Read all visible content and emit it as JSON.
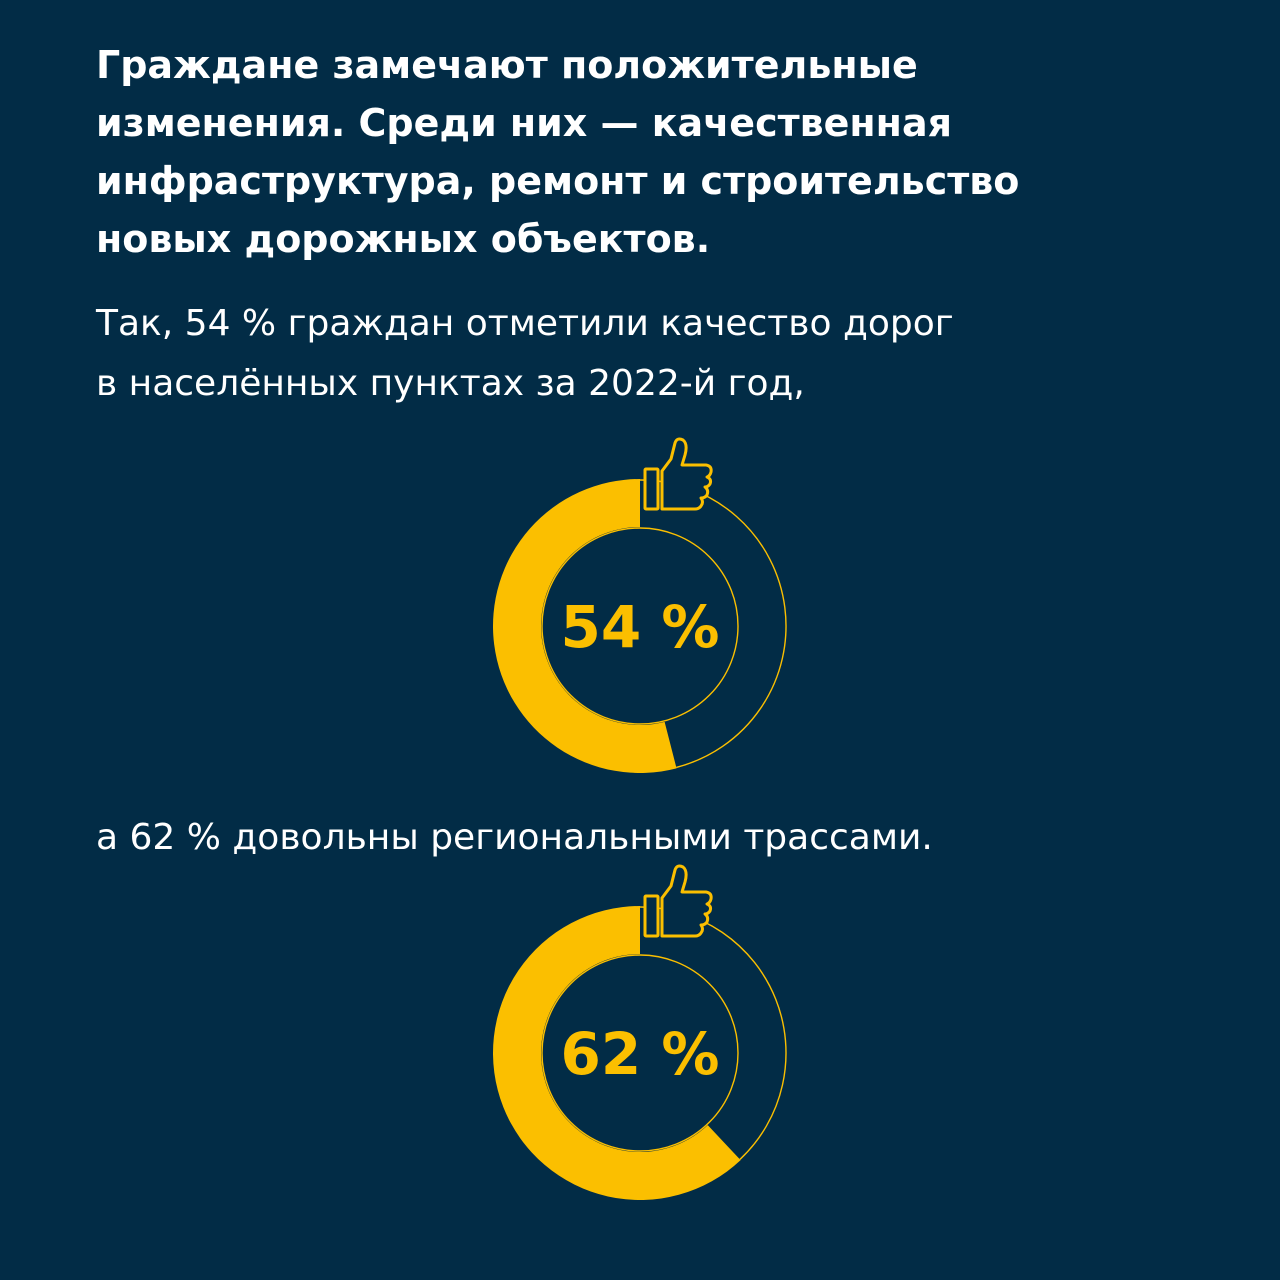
{
  "colors": {
    "background": "#022c46",
    "accent": "#fbbf00",
    "text": "#ffffff"
  },
  "heading": {
    "lines": [
      "Граждане замечают положительные",
      "изменения. Среди них — качественная",
      "инфраструктура, ремонт и строительство",
      "новых дорожных объектов."
    ]
  },
  "lead": {
    "lines": [
      "Так, 54 % граждан отметили качество дорог",
      "в населённых пунктах за 2022-й год,"
    ]
  },
  "mid_text": "а 62 % довольны региональными трассами.",
  "chart_data": [
    {
      "type": "pie",
      "variant": "donut",
      "values": [
        54,
        46
      ],
      "center_label": "54 %",
      "icon": "thumbs-up-icon"
    },
    {
      "type": "pie",
      "variant": "donut",
      "values": [
        62,
        38
      ],
      "center_label": "62 %",
      "icon": "thumbs-up-icon"
    }
  ]
}
